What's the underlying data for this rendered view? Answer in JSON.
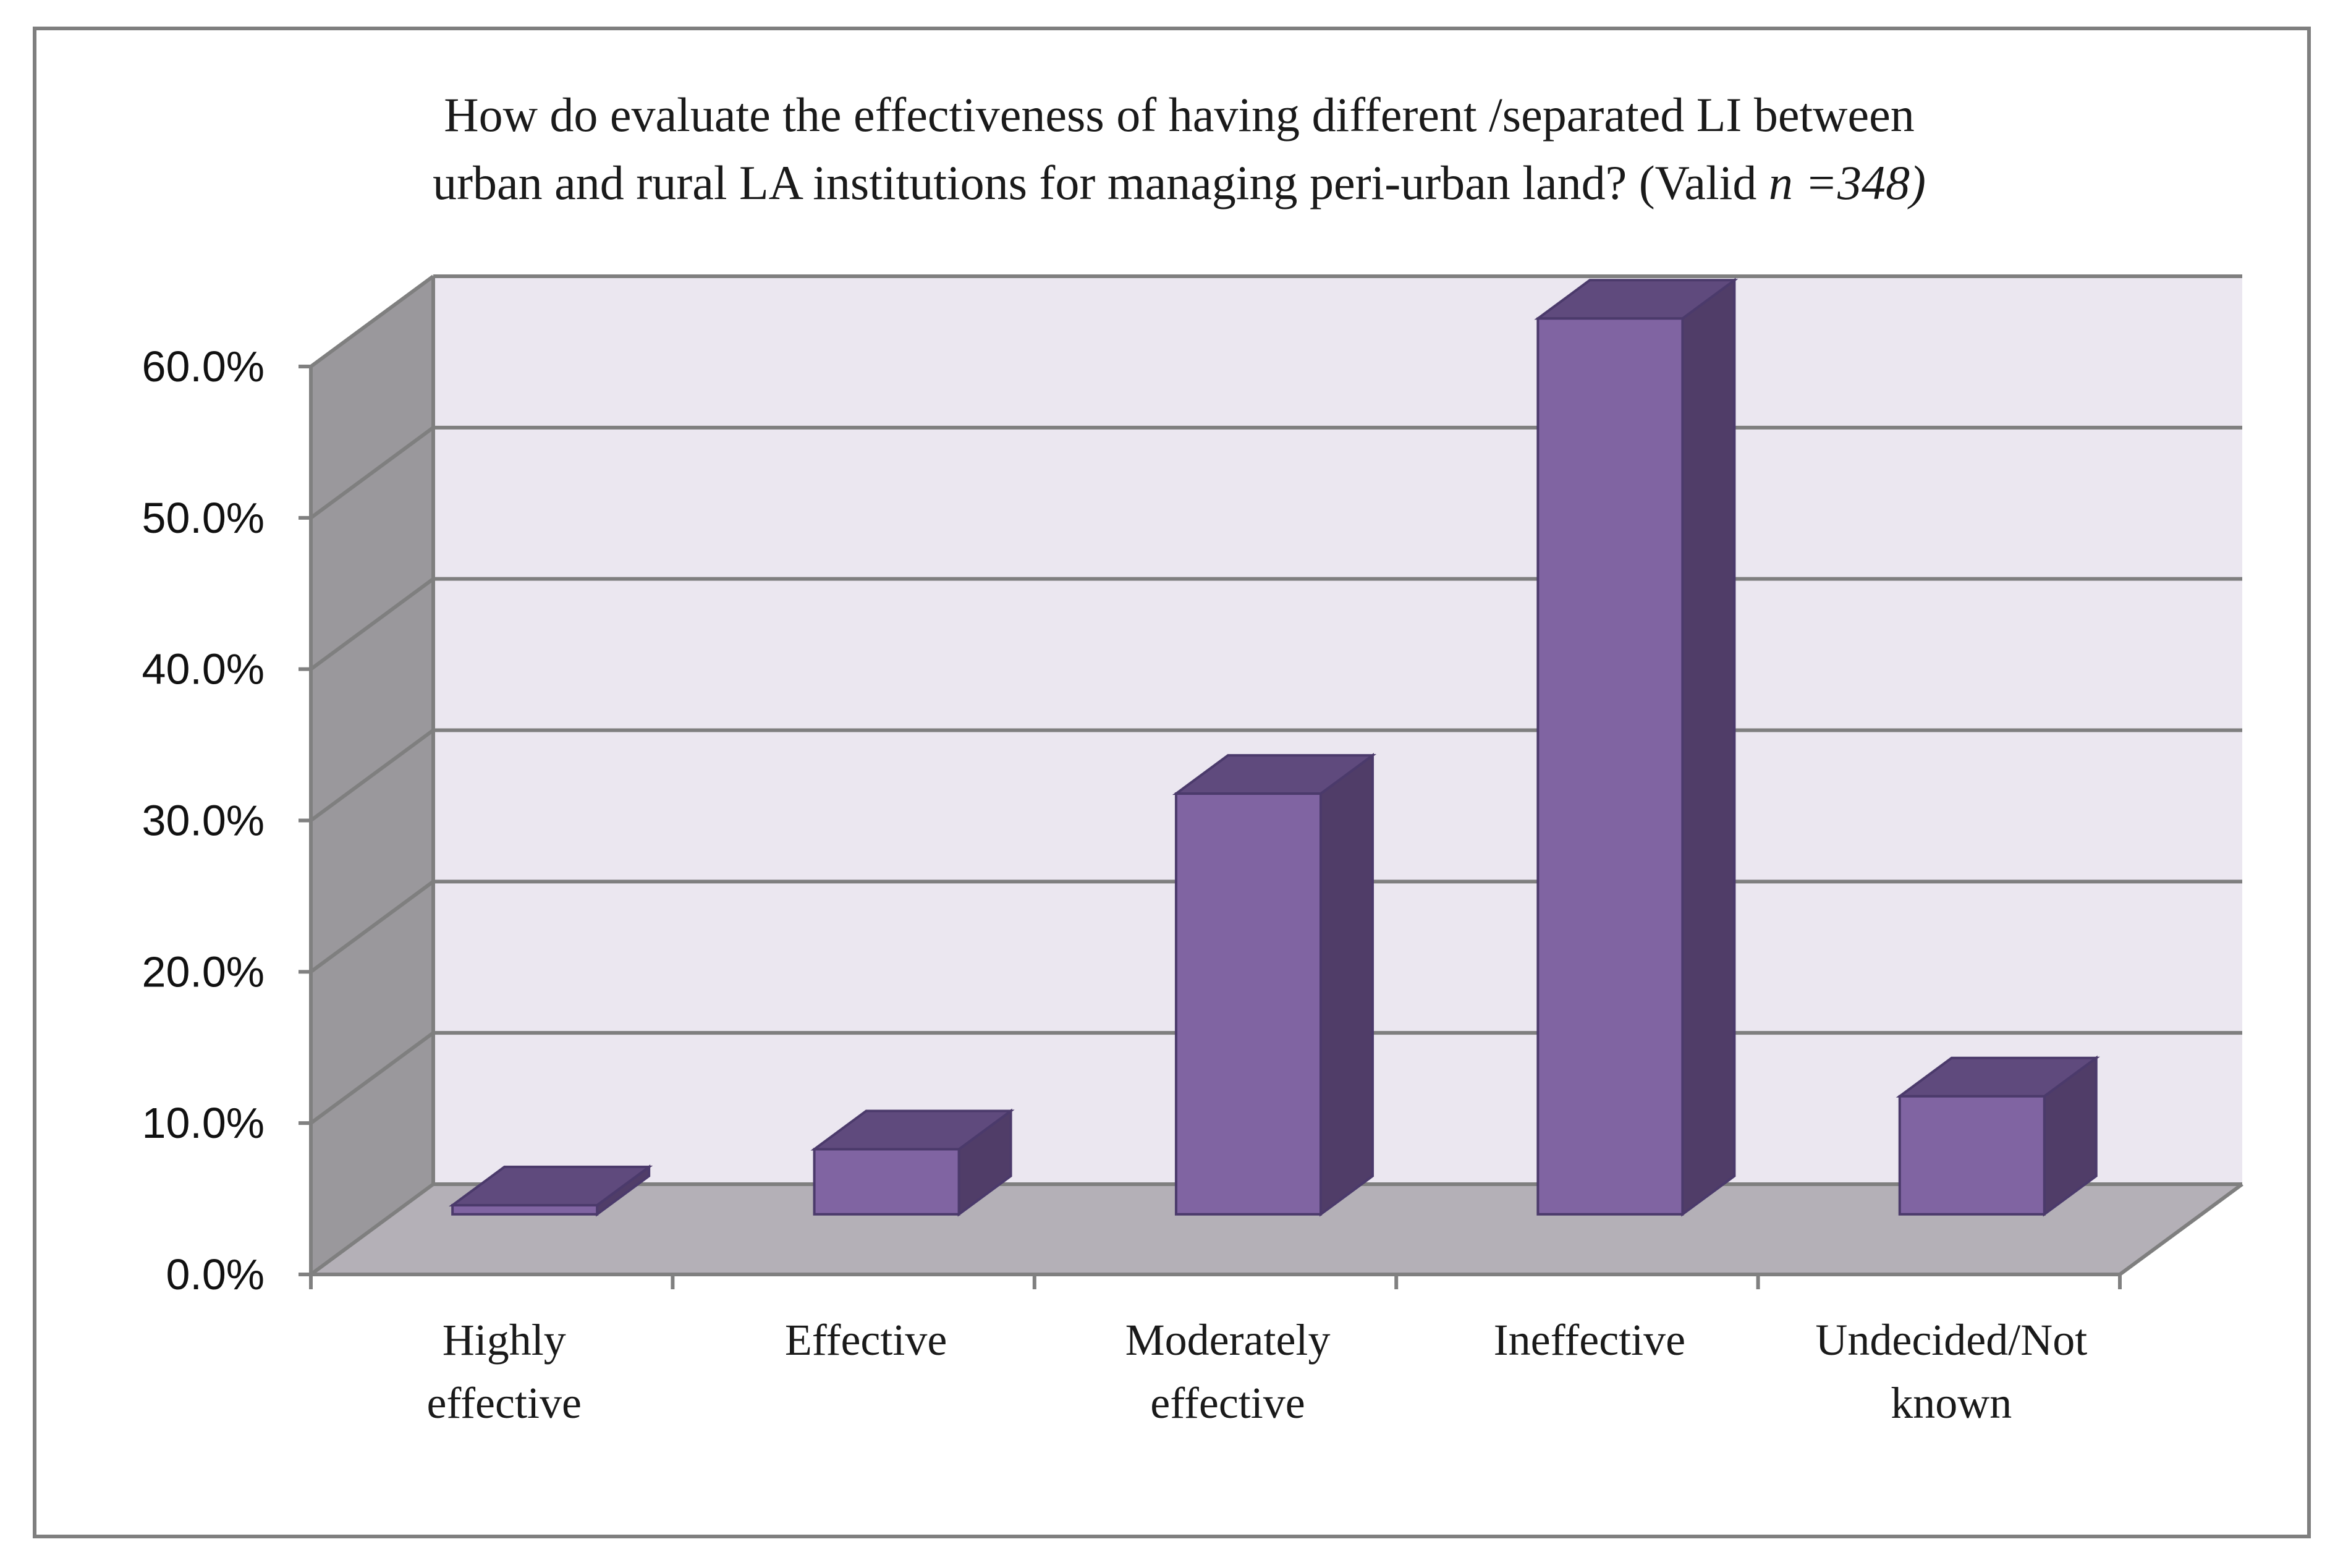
{
  "chart_data": {
    "type": "bar",
    "title_line1": "How do evaluate the effectiveness of having different /separated LI between",
    "title_line2_prefix": "urban and rural LA institutions for managing peri-urban land? (Valid ",
    "title_line2_italic": "n =348)",
    "categories": [
      [
        "Highly",
        "effective"
      ],
      [
        "Effective"
      ],
      [
        "Moderately",
        "effective"
      ],
      [
        "Ineffective"
      ],
      [
        "Undecided/Not",
        "known"
      ]
    ],
    "values": [
      0.6,
      4.3,
      27.8,
      59.2,
      7.8
    ],
    "ylim": [
      0,
      60
    ],
    "yticks": [
      "0.0%",
      "10.0%",
      "20.0%",
      "30.0%",
      "40.0%",
      "50.0%",
      "60.0%"
    ],
    "xlabel": "",
    "ylabel": "",
    "grid": true,
    "legend": "none",
    "colors": {
      "bar_front": "#8064a2",
      "bar_top": "#5f4a7d",
      "bar_side": "#503d68",
      "back_wall": "#ebe7f0",
      "side_wall": "#9a989c",
      "floor": "#b4b0b7"
    }
  }
}
